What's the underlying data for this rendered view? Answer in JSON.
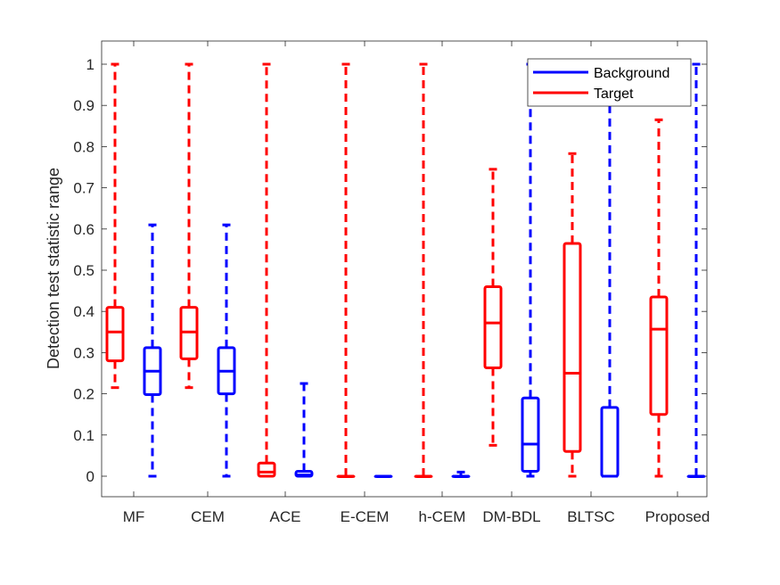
{
  "chart_data": {
    "type": "box",
    "title": "",
    "xlabel": "",
    "ylabel": "Detection test statistic range",
    "ylim": [
      -0.05,
      1.05
    ],
    "yticks": [
      0,
      0.1,
      0.2,
      0.3,
      0.4,
      0.5,
      0.6,
      0.7,
      0.8,
      0.9,
      1
    ],
    "ytick_labels": [
      "0",
      "0.1",
      "0.2",
      "0.3",
      "0.4",
      "0.5",
      "0.6",
      "0.7",
      "0.8",
      "0.9",
      "1"
    ],
    "categories": [
      "MF",
      "CEM",
      "ACE",
      "E-CEM",
      "h-CEM",
      "DM-BDL",
      "BLTSC",
      "Proposed"
    ],
    "legend_position": "top-right",
    "grid": false,
    "series": [
      {
        "name": "Target",
        "color": "#ff0000",
        "boxes": [
          {
            "min": 0.215,
            "q1": 0.28,
            "median": 0.35,
            "q3": 0.41,
            "max": 1.0
          },
          {
            "min": 0.215,
            "q1": 0.285,
            "median": 0.35,
            "q3": 0.41,
            "max": 1.0
          },
          {
            "min": 0.0,
            "q1": 0.0,
            "median": 0.01,
            "q3": 0.032,
            "max": 1.0
          },
          {
            "min": 0.0,
            "q1": 0.0,
            "median": 0.0,
            "q3": 0.0,
            "max": 1.0
          },
          {
            "min": 0.0,
            "q1": 0.0,
            "median": 0.0,
            "q3": 0.0,
            "max": 1.0
          },
          {
            "min": 0.075,
            "q1": 0.263,
            "median": 0.372,
            "q3": 0.46,
            "max": 0.745
          },
          {
            "min": 0.0,
            "q1": 0.06,
            "median": 0.25,
            "q3": 0.565,
            "max": 0.783
          },
          {
            "min": 0.0,
            "q1": 0.15,
            "median": 0.357,
            "q3": 0.435,
            "max": 0.865
          }
        ]
      },
      {
        "name": "Background",
        "color": "#0000ff",
        "boxes": [
          {
            "min": 0.0,
            "q1": 0.198,
            "median": 0.255,
            "q3": 0.312,
            "max": 0.61
          },
          {
            "min": 0.0,
            "q1": 0.2,
            "median": 0.255,
            "q3": 0.312,
            "max": 0.61
          },
          {
            "min": 0.0,
            "q1": 0.0,
            "median": 0.003,
            "q3": 0.012,
            "max": 0.225
          },
          {
            "min": 0.0,
            "q1": 0.0,
            "median": 0.0,
            "q3": 0.0,
            "max": 0.0
          },
          {
            "min": 0.0,
            "q1": 0.0,
            "median": 0.0,
            "q3": 0.0,
            "max": 0.01
          },
          {
            "min": 0.0,
            "q1": 0.012,
            "median": 0.078,
            "q3": 0.19,
            "max": 1.0
          },
          {
            "min": 0.0,
            "q1": 0.0,
            "median": 0.0,
            "q3": 0.167,
            "max": 1.0
          },
          {
            "min": 0.0,
            "q1": 0.0,
            "median": 0.0,
            "q3": 0.0,
            "max": 1.0
          }
        ]
      }
    ]
  }
}
